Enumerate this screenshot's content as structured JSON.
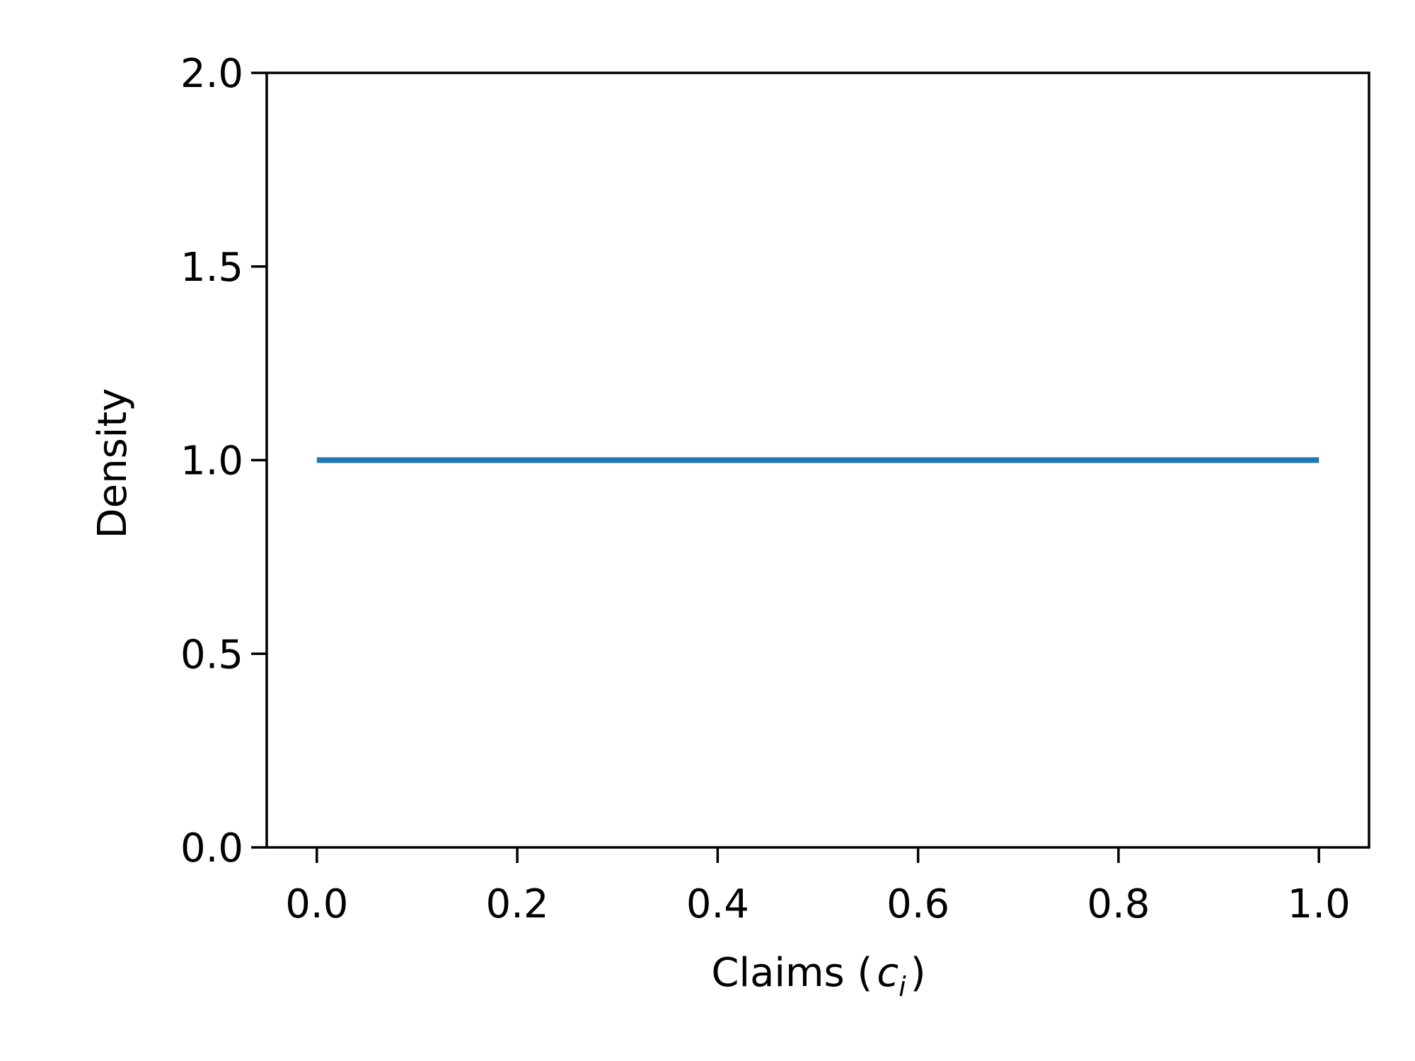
{
  "chart_data": {
    "type": "line",
    "title": "",
    "xlabel": "Claims (",
    "xlabel_symbol": "c",
    "xlabel_subscript": "i",
    "xlabel_suffix": ")",
    "ylabel": "Density",
    "xlim": [
      -0.05,
      1.05
    ],
    "ylim": [
      0.0,
      2.0
    ],
    "x_ticks": [
      0.0,
      0.2,
      0.4,
      0.6,
      0.8,
      1.0
    ],
    "x_tick_labels": [
      "0.0",
      "0.2",
      "0.4",
      "0.6",
      "0.8",
      "1.0"
    ],
    "y_ticks": [
      0.0,
      0.5,
      1.0,
      1.5,
      2.0
    ],
    "y_tick_labels": [
      "0.0",
      "0.5",
      "1.0",
      "1.5",
      "2.0"
    ],
    "grid": false,
    "legend": "none",
    "series": [
      {
        "color": "#1f77b4",
        "x": [
          0.0,
          1.0
        ],
        "y": [
          1.0,
          1.0
        ]
      }
    ]
  }
}
